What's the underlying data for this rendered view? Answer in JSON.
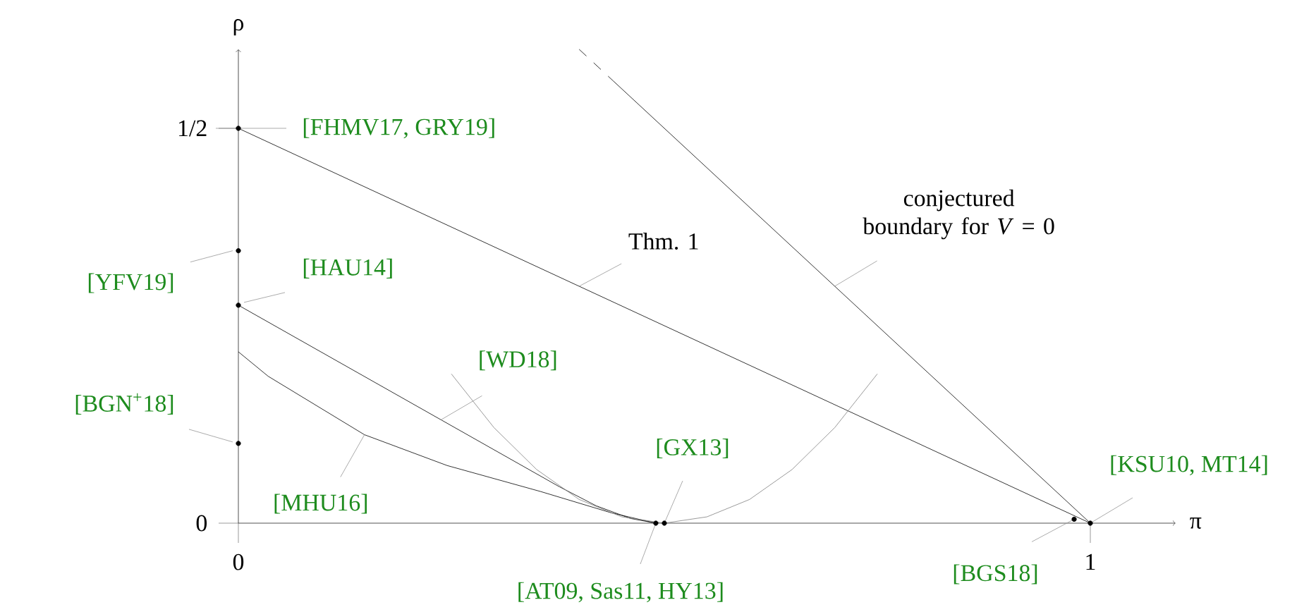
{
  "chart_data": {
    "type": "line",
    "xlabel": "π",
    "ylabel": "ρ",
    "xlim": [
      0,
      1.1
    ],
    "ylim": [
      0,
      0.6
    ],
    "xticks": [
      0,
      1
    ],
    "yticks": [
      0,
      {
        "value": 0.5,
        "label": "1/2"
      }
    ],
    "series": [
      {
        "color": "#000000",
        "line_style": "solid",
        "marker": "none",
        "x": [
          0,
          1
        ],
        "values": [
          0.5,
          0
        ]
      },
      {
        "color": "#000000",
        "line_style": "dashed",
        "marker": "none",
        "x": [
          0.4,
          0.44
        ],
        "values": [
          0.6,
          0.56
        ]
      },
      {
        "color": "#000000",
        "line_style": "solid",
        "marker": "none",
        "x": [
          0.44,
          1
        ],
        "values": [
          0.56,
          0
        ]
      },
      {
        "color": "#000000",
        "line_style": "solid",
        "marker": "none",
        "x": [
          0,
          0.377,
          0.42,
          0.46,
          0.49
        ],
        "values": [
          0.276,
          0.046,
          0.022,
          0.006,
          0
        ]
      },
      {
        "color": "#000000",
        "line_style": "solid",
        "marker": "none",
        "x": [
          0,
          0.035,
          0.148,
          0.245,
          0.355,
          0.438,
          0.49
        ],
        "values": [
          0.217,
          0.186,
          0.112,
          0.073,
          0.04,
          0.013,
          0
        ]
      },
      {
        "color": "#808080",
        "line_style": "solid",
        "marker": "none",
        "x": [
          0.25,
          0.3,
          0.35,
          0.4,
          0.45,
          0.5,
          0.55,
          0.6,
          0.65,
          0.7,
          0.75
        ],
        "values": [
          0.189,
          0.121,
          0.068,
          0.03,
          0.008,
          0,
          0.008,
          0.03,
          0.068,
          0.121,
          0.189
        ]
      },
      {
        "type": "scatter",
        "color": "#000000",
        "marker": "circle",
        "x": [
          0,
          0,
          0,
          0,
          0.49,
          0.5,
          0.981,
          1
        ],
        "values": [
          0.5,
          0.345,
          0.276,
          0.101,
          0,
          0,
          0.005,
          0
        ]
      }
    ],
    "annotations": [
      {
        "text": "[FHMV17, GRY19]",
        "x": 0,
        "y": 0.5
      },
      {
        "text": "[YFV19]",
        "x": 0,
        "y": 0.345
      },
      {
        "text": "[HAU14]",
        "x": 0,
        "y": 0.276
      },
      {
        "text": "[BGN$^{+}$18]",
        "x": 0,
        "y": 0.101
      },
      {
        "text": "[MHU16]",
        "x": 0.148,
        "y": 0.112
      },
      {
        "text": "[WD18]",
        "x": 0.238,
        "y": 0.131
      },
      {
        "text": "[GX13]",
        "x": 0.5,
        "y": 0
      },
      {
        "text": "[AT09, Sas11, HY13]",
        "x": 0.49,
        "y": 0
      },
      {
        "text": "[BGS18]",
        "x": 0.981,
        "y": 0.005
      },
      {
        "text": "[KSU10, MT14]",
        "x": 1,
        "y": 0
      },
      {
        "text": "Thm. 1",
        "x": 0.4,
        "y": 0.3
      },
      {
        "text": "conjectured boundary for *V* = 0",
        "x": 0.7,
        "y": 0.3
      }
    ]
  }
}
